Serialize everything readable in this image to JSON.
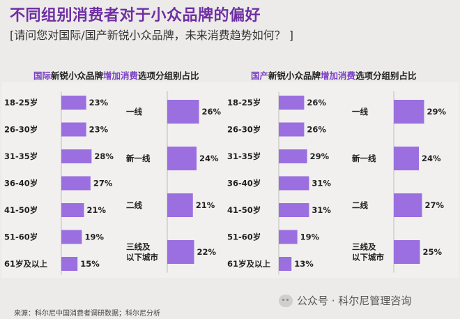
{
  "header": {
    "title": "不同组别消费者对于小众品牌的偏好",
    "subtitle": "[请问您对国际/国产新锐小众品牌，未来消费趋势如何？ ]"
  },
  "panels": [
    {
      "title_prefix": "国际",
      "title_mid": "新锐小众品牌",
      "title_highlight": "增加消费",
      "title_suffix": "选项分组别占比"
    },
    {
      "title_prefix": "国产",
      "title_mid": "新锐小众品牌",
      "title_highlight": "增加消费",
      "title_suffix": "选项分组别占比"
    }
  ],
  "colors": {
    "bar": "#9b6fe0",
    "title": "#6f2fa3",
    "highlight": "#7a3fc4"
  },
  "chart_data": [
    {
      "type": "bar",
      "title": "国际新锐小众品牌增加消费选项分组别占比 - 年龄",
      "categories": [
        "18-25岁",
        "26-30岁",
        "31-35岁",
        "36-40岁",
        "41-50岁",
        "51-60岁",
        "61岁及以上"
      ],
      "values": [
        23,
        23,
        28,
        27,
        21,
        19,
        15
      ],
      "labels": [
        "23%",
        "23%",
        "28%",
        "27%",
        "21%",
        "19%",
        "15%"
      ],
      "unit": "%"
    },
    {
      "type": "bar",
      "title": "国际新锐小众品牌增加消费选项分组别占比 - 城市",
      "categories": [
        "一线",
        "新一线",
        "二线",
        "三线及以下城市"
      ],
      "category_lines": [
        [
          "一线"
        ],
        [
          "新一线"
        ],
        [
          "二线"
        ],
        [
          "三线及",
          "以下城市"
        ]
      ],
      "values": [
        26,
        24,
        21,
        22
      ],
      "labels": [
        "26%",
        "24%",
        "21%",
        "22%"
      ],
      "unit": "%"
    },
    {
      "type": "bar",
      "title": "国产新锐小众品牌增加消费选项分组别占比 - 年龄",
      "categories": [
        "18-25岁",
        "26-30岁",
        "31-35岁",
        "36-40岁",
        "41-50岁",
        "51-60岁",
        "61岁及以上"
      ],
      "values": [
        26,
        26,
        29,
        31,
        31,
        19,
        13
      ],
      "labels": [
        "26%",
        "26%",
        "29%",
        "31%",
        "31%",
        "19%",
        "13%"
      ],
      "unit": "%"
    },
    {
      "type": "bar",
      "title": "国产新锐小众品牌增加消费选项分组别占比 - 城市",
      "categories": [
        "一线",
        "新一线",
        "二线",
        "三线及以下城市"
      ],
      "category_lines": [
        [
          "一线"
        ],
        [
          "新一线"
        ],
        [
          "二线"
        ],
        [
          "三线及",
          "以下城市"
        ]
      ],
      "values": [
        29,
        24,
        27,
        25
      ],
      "labels": [
        "29%",
        "24%",
        "27%",
        "25%"
      ],
      "unit": "%"
    }
  ],
  "footer": {
    "source": "来源：科尔尼中国消费者调研数据；科尔尼分析",
    "watermark": "公众号 · 科尔尼管理咨询"
  }
}
